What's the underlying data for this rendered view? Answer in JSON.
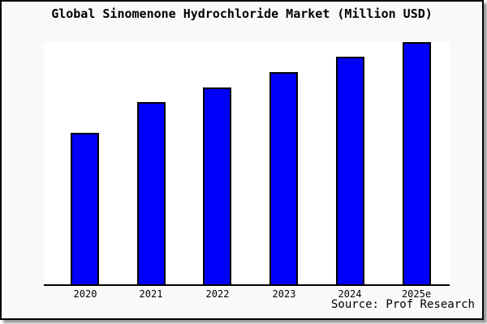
{
  "title": "Global Sinomenone Hydrochloride Market (Million USD)",
  "source": "Source: Prof Research",
  "colors": {
    "bar_fill": "#0000fb",
    "bar_border": "#000000",
    "panel_background": "#f9f9f9",
    "plot_background": "#ffffff",
    "axis": "#000000",
    "panel_border": "#000000"
  },
  "chart_data": {
    "type": "bar",
    "title": "Global Sinomenone Hydrochloride Market (Million USD)",
    "categories": [
      "2020",
      "2021",
      "2022",
      "2023",
      "2024",
      "2025e"
    ],
    "values": [
      62.5,
      75.3,
      81.3,
      87.6,
      94.0,
      100.0
    ],
    "value_units": "relative index (no y-axis labels shown; tallest bar 2025e = 100)",
    "xlabel": "",
    "ylabel": "",
    "ylim": [
      0,
      100
    ],
    "grid": false,
    "legend": false,
    "note": "Single blue series, black bar outlines, x-axis line only"
  }
}
